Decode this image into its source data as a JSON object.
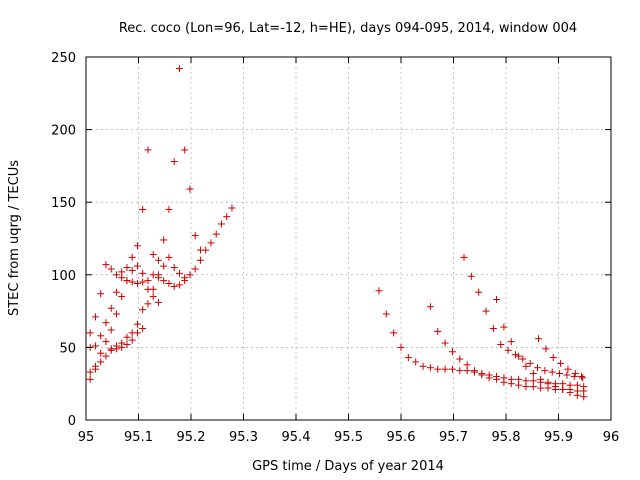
{
  "chart_data": {
    "type": "scatter",
    "title": "Rec. coco (Lon=96, Lat=-12, h=HE), days 094-095, 2014, window 004",
    "xlabel": "GPS time / Days of year 2014",
    "ylabel": "STEC from uqrg / TECUs",
    "xlim": [
      95,
      96
    ],
    "ylim": [
      0,
      250
    ],
    "xticks": [
      95,
      95.1,
      95.2,
      95.3,
      95.4,
      95.5,
      95.6,
      95.7,
      95.8,
      95.9,
      96
    ],
    "xtick_labels": [
      "95",
      "95.1",
      "95.2",
      "95.3",
      "95.4",
      "95.5",
      "95.6",
      "95.7",
      "95.8",
      "95.9",
      "96"
    ],
    "yticks": [
      0,
      50,
      100,
      150,
      200,
      250
    ],
    "ytick_labels": [
      "0",
      "50",
      "100",
      "150",
      "200",
      "250"
    ],
    "grid": true,
    "marker": "+",
    "color": "#cc0000",
    "series": [
      {
        "name": "STEC",
        "x": [
          95.008,
          95.018,
          95.028,
          95.038,
          95.048,
          95.058,
          95.068,
          95.078,
          95.088,
          95.098,
          95.108,
          95.118,
          95.128,
          95.138,
          95.148,
          95.158,
          95.168,
          95.178,
          95.188,
          95.198,
          95.208,
          95.218,
          95.008,
          95.018,
          95.028,
          95.038,
          95.048,
          95.058,
          95.068,
          95.078,
          95.088,
          95.098,
          95.108,
          95.118,
          95.128,
          95.138,
          95.148,
          95.158,
          95.168,
          95.178,
          95.188,
          95.008,
          95.018,
          95.028,
          95.038,
          95.048,
          95.058,
          95.068,
          95.078,
          95.088,
          95.098,
          95.108,
          95.118,
          95.128,
          95.138,
          95.008,
          95.018,
          95.028,
          95.038,
          95.048,
          95.058,
          95.068,
          95.078,
          95.088,
          95.098,
          95.108,
          95.048,
          95.058,
          95.068,
          95.078,
          95.088,
          95.098,
          95.108,
          95.118,
          95.128,
          95.138,
          95.148,
          95.158,
          95.168,
          95.178,
          95.188,
          95.198,
          95.208,
          95.218,
          95.228,
          95.238,
          95.248,
          95.258,
          95.268,
          95.278,
          95.558,
          95.572,
          95.586,
          95.6,
          95.614,
          95.628,
          95.642,
          95.656,
          95.67,
          95.684,
          95.698,
          95.712,
          95.726,
          95.74,
          95.754,
          95.768,
          95.782,
          95.796,
          95.81,
          95.824,
          95.838,
          95.852,
          95.866,
          95.88,
          95.894,
          95.908,
          95.922,
          95.936,
          95.948,
          95.656,
          95.67,
          95.684,
          95.698,
          95.712,
          95.726,
          95.74,
          95.754,
          95.768,
          95.782,
          95.796,
          95.81,
          95.824,
          95.838,
          95.852,
          95.866,
          95.88,
          95.894,
          95.908,
          95.922,
          95.936,
          95.948,
          95.72,
          95.734,
          95.748,
          95.762,
          95.776,
          95.79,
          95.804,
          95.818,
          95.832,
          95.846,
          95.86,
          95.874,
          95.888,
          95.902,
          95.916,
          95.93,
          95.944,
          95.782,
          95.796,
          95.81,
          95.824,
          95.838,
          95.852,
          95.866,
          95.88,
          95.894,
          95.908,
          95.922,
          95.936,
          95.948,
          95.862,
          95.876,
          95.89,
          95.904,
          95.918,
          95.932,
          95.946
        ],
        "y": [
          60,
          71,
          87,
          107,
          104,
          100,
          98,
          96,
          95,
          94,
          95,
          96,
          100,
          110,
          124,
          145,
          178,
          242,
          186,
          159,
          127,
          117,
          50,
          51,
          58,
          67,
          77,
          88,
          102,
          105,
          112,
          120,
          145,
          186,
          114,
          100,
          96,
          94,
          92,
          93,
          98,
          33,
          37,
          46,
          54,
          62,
          73,
          85,
          96,
          103,
          106,
          101,
          90,
          85,
          81,
          28,
          35,
          40,
          44,
          48,
          49,
          50,
          52,
          55,
          60,
          63,
          49,
          51,
          53,
          57,
          60,
          66,
          76,
          80,
          90,
          98,
          106,
          112,
          105,
          101,
          96,
          100,
          104,
          110,
          117,
          122,
          128,
          135,
          140,
          146,
          89,
          73,
          60,
          50,
          43,
          40,
          37,
          36,
          35,
          35,
          35,
          34,
          34,
          33,
          32,
          31,
          30,
          29,
          28,
          28,
          27,
          27,
          26,
          26,
          25,
          25,
          24,
          24,
          23,
          78,
          61,
          53,
          47,
          42,
          38,
          34,
          31,
          29,
          28,
          26,
          25,
          24,
          23,
          23,
          22,
          22,
          21,
          21,
          21,
          20,
          20,
          112,
          99,
          88,
          75,
          63,
          52,
          48,
          45,
          42,
          39,
          36,
          34,
          33,
          32,
          31,
          30,
          30,
          83,
          64,
          54,
          44,
          37,
          32,
          28,
          25,
          23,
          21,
          19,
          17,
          16,
          56,
          49,
          43,
          39,
          35,
          32,
          29
        ]
      }
    ]
  }
}
